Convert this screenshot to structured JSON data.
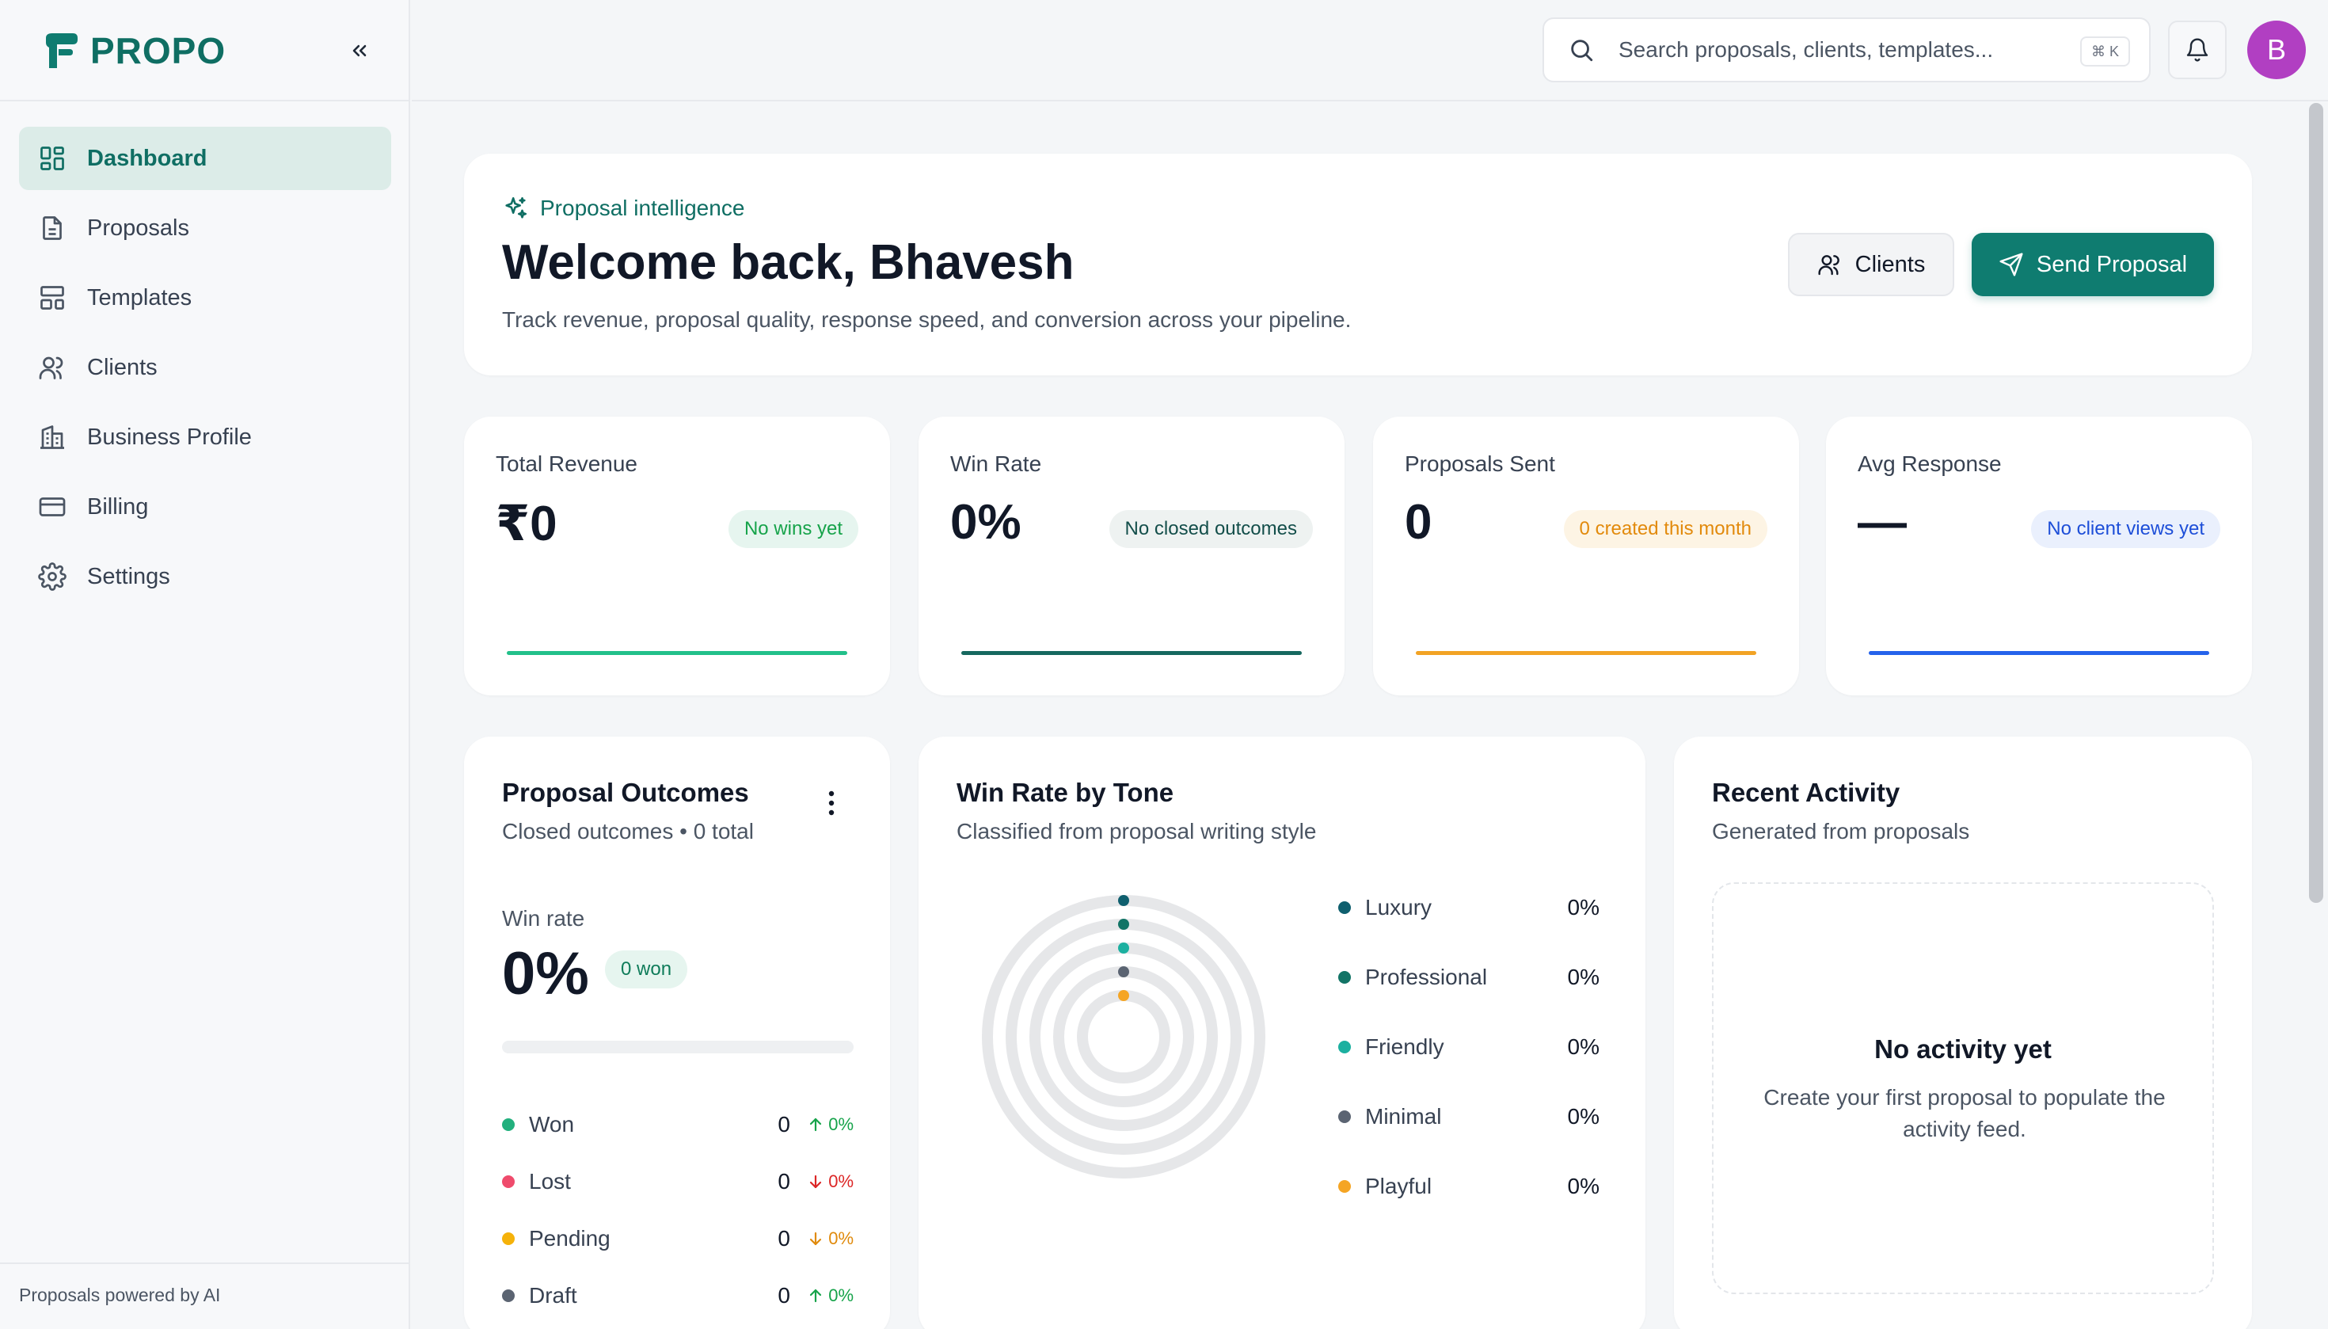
{
  "brand": {
    "name": "PROPO"
  },
  "nav": {
    "items": [
      {
        "label": "Dashboard",
        "icon": "dashboard-icon",
        "active": true
      },
      {
        "label": "Proposals",
        "icon": "document-icon",
        "active": false
      },
      {
        "label": "Templates",
        "icon": "template-icon",
        "active": false
      },
      {
        "label": "Clients",
        "icon": "users-icon",
        "active": false
      },
      {
        "label": "Business Profile",
        "icon": "building-icon",
        "active": false
      },
      {
        "label": "Billing",
        "icon": "credit-card-icon",
        "active": false
      },
      {
        "label": "Settings",
        "icon": "gear-icon",
        "active": false
      }
    ]
  },
  "sidebar_footer": "Proposals powered by AI",
  "search": {
    "placeholder": "Search proposals, clients, templates...",
    "shortcut": "⌘ K"
  },
  "user": {
    "initial": "B"
  },
  "hero": {
    "kicker": "Proposal intelligence",
    "title": "Welcome back, Bhavesh",
    "subtitle": "Track revenue, proposal quality, response speed, and conversion across your pipeline.",
    "clients_label": "Clients",
    "send_label": "Send Proposal"
  },
  "stats": [
    {
      "label": "Total Revenue",
      "value": "₹0",
      "badge": "No wins yet",
      "badge_bg": "#e6f5ef",
      "badge_fg": "#16a34a",
      "line_color": "#22c08a"
    },
    {
      "label": "Win Rate",
      "value": "0%",
      "badge": "No closed outcomes",
      "badge_bg": "#eef2f1",
      "badge_fg": "#134e4a",
      "line_color": "#16685f"
    },
    {
      "label": "Proposals Sent",
      "value": "0",
      "badge": "0 created this month",
      "badge_bg": "#fdf4e4",
      "badge_fg": "#e28a0c",
      "line_color": "#f2a324"
    },
    {
      "label": "Avg Response",
      "value": "—",
      "badge": "No client views yet",
      "badge_bg": "#eaf0fd",
      "badge_fg": "#1d4ed8",
      "line_color": "#2563eb"
    }
  ],
  "outcomes": {
    "title": "Proposal Outcomes",
    "subtitle": "Closed outcomes • 0 total",
    "win_rate_label": "Win rate",
    "win_rate_value": "0%",
    "won_badge": "0 won",
    "progress": 0,
    "rows": [
      {
        "name": "Won",
        "count": "0",
        "trend": "0%",
        "direction": "up",
        "dot": "#22b07d",
        "trend_color": "#16a34a"
      },
      {
        "name": "Lost",
        "count": "0",
        "trend": "0%",
        "direction": "down",
        "dot": "#ef4b6c",
        "trend_color": "#dc2626"
      },
      {
        "name": "Pending",
        "count": "0",
        "trend": "0%",
        "direction": "down",
        "dot": "#f5b20a",
        "trend_color": "#e08a0c"
      },
      {
        "name": "Draft",
        "count": "0",
        "trend": "0%",
        "direction": "up",
        "dot": "#5b6472",
        "trend_color": "#16a34a"
      }
    ]
  },
  "tone": {
    "title": "Win Rate by Tone",
    "subtitle": "Classified from proposal writing style",
    "rows": [
      {
        "name": "Luxury",
        "pct": "0%",
        "color": "#0f5f6e"
      },
      {
        "name": "Professional",
        "pct": "0%",
        "color": "#127466"
      },
      {
        "name": "Friendly",
        "pct": "0%",
        "color": "#1cb0a0"
      },
      {
        "name": "Minimal",
        "pct": "0%",
        "color": "#5b6472"
      },
      {
        "name": "Playful",
        "pct": "0%",
        "color": "#f5a524"
      }
    ]
  },
  "activity": {
    "title": "Recent Activity",
    "subtitle": "Generated from proposals",
    "empty_title": "No activity yet",
    "empty_sub": "Create your first proposal to populate the activity feed."
  }
}
